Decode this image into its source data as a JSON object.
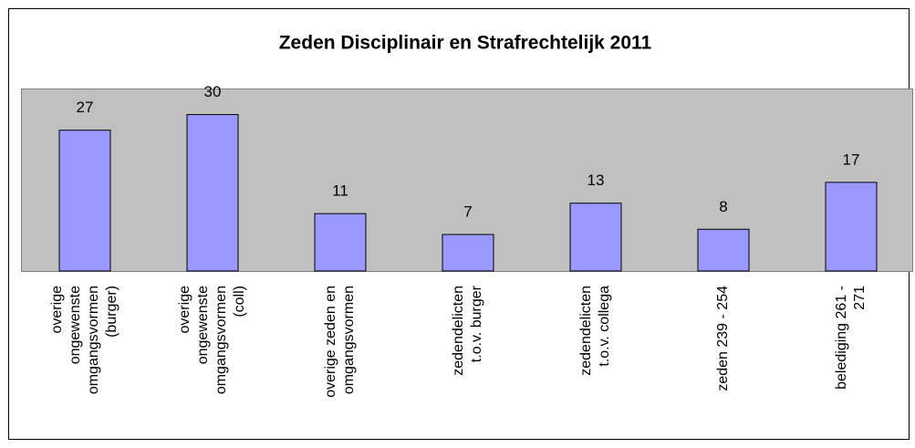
{
  "chart_data": {
    "type": "bar",
    "title": "Zeden Disciplinair en Strafrechtelijk 2011",
    "categories": [
      [
        "overige",
        "ongewenste",
        "omgangsvormen",
        "(burger)"
      ],
      [
        "overige",
        "ongewenste",
        "omgangsvormen",
        "(coll)"
      ],
      [
        "overige zeden en",
        "omgangsvormen"
      ],
      [
        "zedendelicten",
        "t.o.v. burger"
      ],
      [
        "zedendelicten",
        "t.o.v. collega"
      ],
      [
        "zeden 239 - 254"
      ],
      [
        "belediging 261 -",
        "271"
      ]
    ],
    "values": [
      27,
      30,
      11,
      7,
      13,
      8,
      17
    ],
    "color": "#9999ff",
    "ylim": [
      0,
      35
    ]
  }
}
